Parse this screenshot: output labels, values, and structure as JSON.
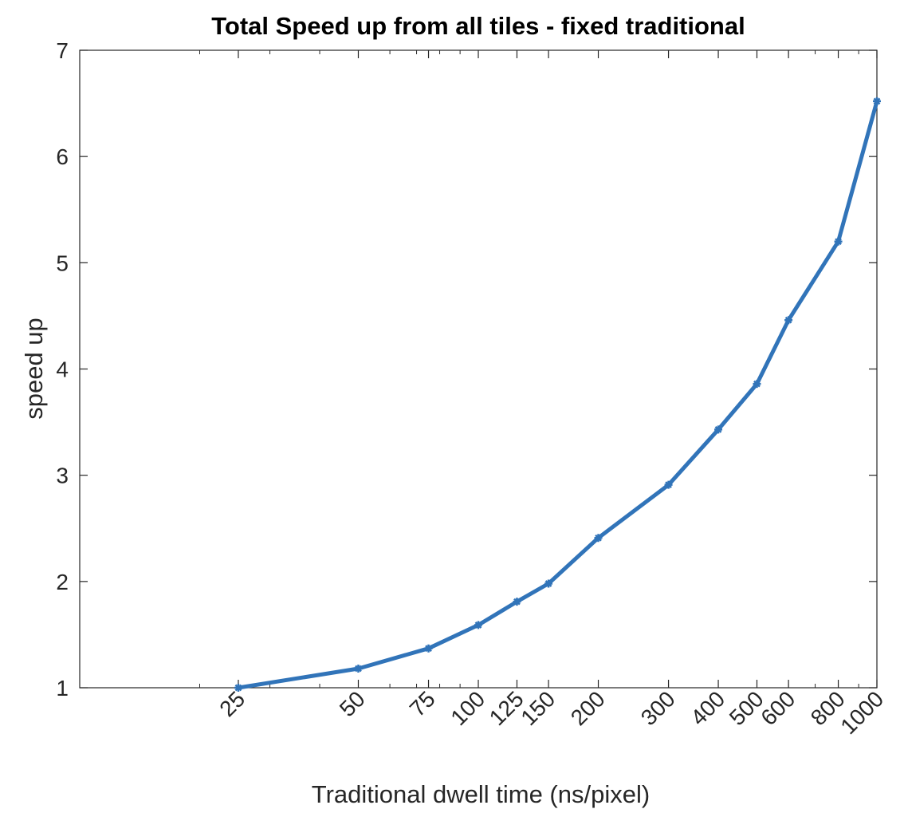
{
  "chart_data": {
    "type": "line",
    "title": "Total Speed up from all tiles - fixed traditional",
    "xlabel": "Traditional dwell time (ns/pixel)",
    "ylabel": "speed up",
    "x_scale": "log",
    "xlim": [
      10,
      1000
    ],
    "ylim": [
      1,
      7
    ],
    "x_ticks": [
      25,
      50,
      75,
      100,
      125,
      150,
      200,
      300,
      400,
      500,
      600,
      800,
      1000
    ],
    "x_tick_labels": [
      "25",
      "50",
      "75",
      "100",
      "125",
      "150",
      "200",
      "300",
      "400",
      "500",
      "600",
      "800",
      "1000"
    ],
    "y_ticks": [
      1,
      2,
      3,
      4,
      5,
      6,
      7
    ],
    "y_tick_labels": [
      "1",
      "2",
      "3",
      "4",
      "5",
      "6",
      "7"
    ],
    "x_tick_rotation_deg": 45,
    "grid": false,
    "legend": "none",
    "series": [
      {
        "color": "#3174b9",
        "marker": "star",
        "x": [
          25,
          50,
          75,
          100,
          125,
          150,
          200,
          300,
          400,
          500,
          600,
          800,
          1000
        ],
        "y": [
          1.0,
          1.18,
          1.37,
          1.59,
          1.81,
          1.98,
          2.41,
          2.91,
          3.43,
          3.86,
          4.46,
          5.2,
          6.52
        ]
      }
    ]
  }
}
